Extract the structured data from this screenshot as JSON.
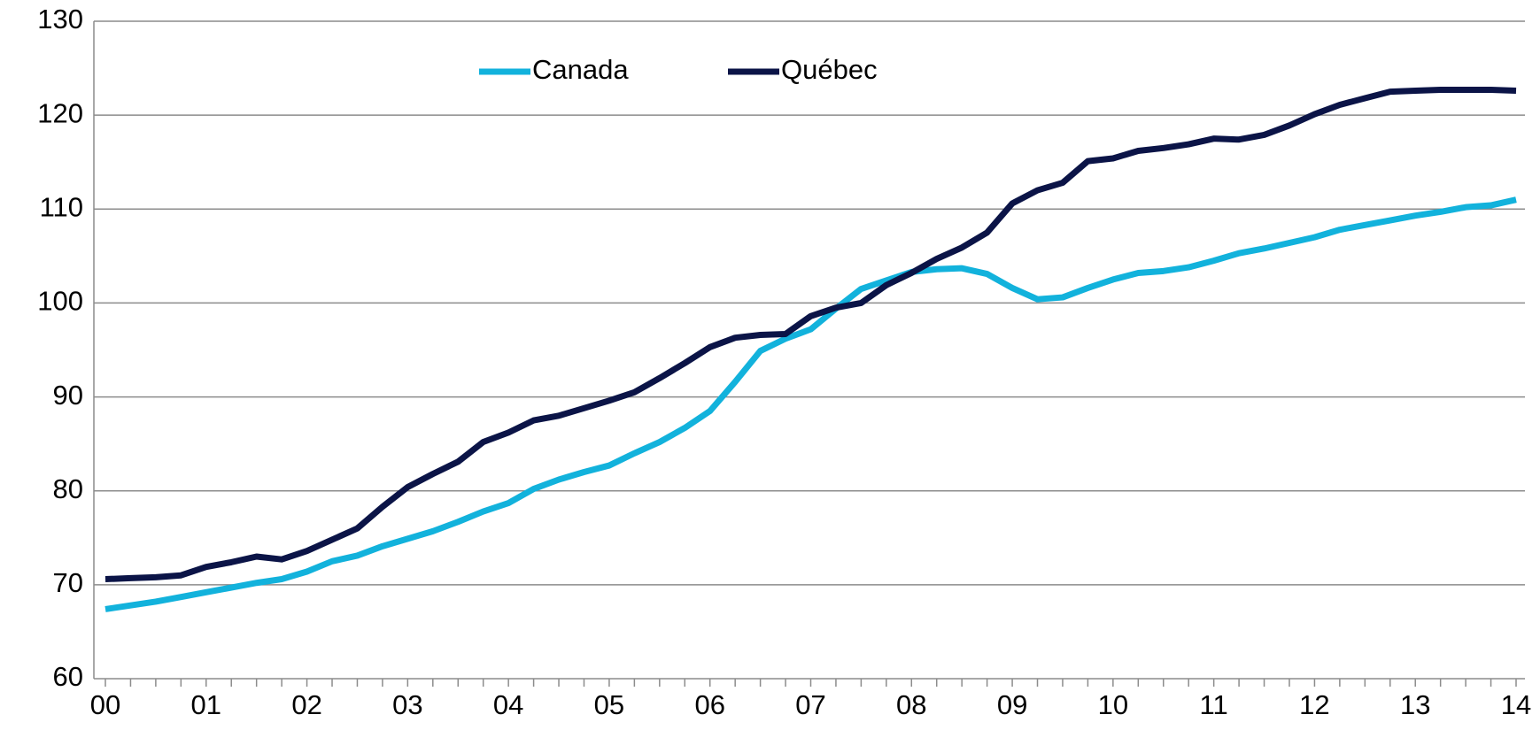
{
  "chart_data": {
    "type": "line",
    "categories": [
      "00",
      null,
      null,
      null,
      "01",
      null,
      null,
      null,
      "02",
      null,
      null,
      null,
      "03",
      null,
      null,
      null,
      "04",
      null,
      null,
      null,
      "05",
      null,
      null,
      null,
      "06",
      null,
      null,
      null,
      "07",
      null,
      null,
      null,
      "08",
      null,
      null,
      null,
      "09",
      null,
      null,
      null,
      "10",
      null,
      null,
      null,
      "11",
      null,
      null,
      null,
      "12",
      null,
      null,
      null,
      "13",
      null,
      null,
      null,
      "14"
    ],
    "series": [
      {
        "name": "Canada",
        "color": "#12b2dc",
        "values": [
          67.4,
          67.8,
          68.2,
          68.7,
          69.2,
          69.7,
          70.2,
          70.6,
          71.4,
          72.5,
          73.1,
          74.1,
          74.9,
          75.7,
          76.7,
          77.8,
          78.7,
          80.2,
          81.2,
          82.0,
          82.7,
          84.0,
          85.2,
          86.7,
          88.5,
          91.6,
          94.9,
          96.2,
          97.2,
          99.4,
          101.5,
          102.4,
          103.3,
          103.6,
          103.7,
          103.1,
          101.6,
          100.4,
          100.6,
          101.6,
          102.5,
          103.2,
          103.4,
          103.8,
          104.5,
          105.3,
          105.8,
          106.4,
          107.0,
          107.8,
          108.3,
          108.8,
          109.3,
          109.7,
          110.2,
          110.4,
          111.0
        ]
      },
      {
        "name": "Québec",
        "color": "#0b1447",
        "values": [
          70.6,
          70.7,
          70.8,
          71.0,
          71.9,
          72.4,
          73.0,
          72.7,
          73.6,
          74.8,
          76.0,
          78.3,
          80.4,
          81.8,
          83.1,
          85.2,
          86.2,
          87.5,
          88.0,
          88.8,
          89.6,
          90.5,
          92.0,
          93.6,
          95.3,
          96.3,
          96.6,
          96.7,
          98.6,
          99.5,
          100.0,
          101.9,
          103.2,
          104.7,
          105.9,
          107.5,
          110.6,
          112.0,
          112.8,
          115.1,
          115.4,
          116.2,
          116.5,
          116.9,
          117.5,
          117.4,
          117.9,
          118.9,
          120.1,
          121.1,
          121.8,
          122.5,
          122.6,
          122.7,
          122.7,
          122.7,
          122.6
        ]
      }
    ],
    "ylim": [
      60,
      130
    ],
    "yticks": [
      60,
      70,
      80,
      90,
      100,
      110,
      120,
      130
    ],
    "grid": true,
    "legend": "upper center"
  }
}
